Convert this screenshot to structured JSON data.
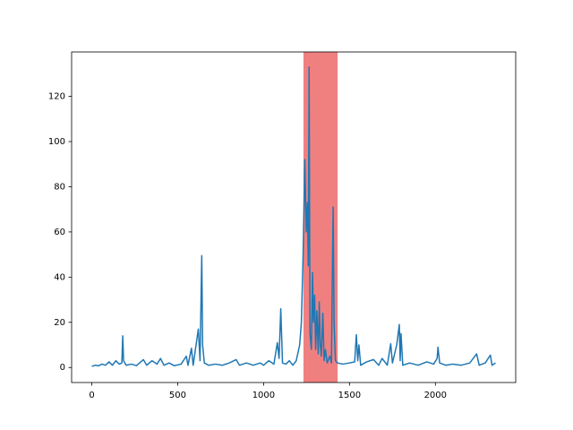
{
  "chart_data": {
    "type": "line",
    "x": [
      0,
      20,
      40,
      60,
      80,
      100,
      120,
      140,
      160,
      175,
      180,
      185,
      200,
      230,
      260,
      300,
      320,
      350,
      380,
      400,
      420,
      450,
      480,
      520,
      550,
      560,
      580,
      590,
      620,
      630,
      640,
      645,
      655,
      680,
      720,
      760,
      800,
      840,
      860,
      900,
      940,
      980,
      1000,
      1030,
      1060,
      1080,
      1090,
      1100,
      1110,
      1130,
      1150,
      1170,
      1190,
      1210,
      1220,
      1230,
      1240,
      1248,
      1255,
      1260,
      1265,
      1270,
      1278,
      1285,
      1290,
      1297,
      1303,
      1310,
      1318,
      1324,
      1330,
      1336,
      1345,
      1352,
      1360,
      1370,
      1385,
      1395,
      1400,
      1405,
      1410,
      1418,
      1430,
      1460,
      1500,
      1530,
      1540,
      1548,
      1555,
      1565,
      1600,
      1640,
      1670,
      1690,
      1720,
      1740,
      1750,
      1775,
      1790,
      1795,
      1800,
      1810,
      1850,
      1900,
      1950,
      1990,
      2010,
      2015,
      2025,
      2060,
      2100,
      2150,
      2200,
      2240,
      2255,
      2290,
      2320,
      2330,
      2350
    ],
    "series": [
      {
        "color": "#1f77b4",
        "values": [
          0.5,
          1,
          0.8,
          1.5,
          1,
          2.5,
          1,
          3,
          1.5,
          2,
          14,
          3,
          1,
          1.5,
          0.8,
          3.5,
          1,
          3,
          1.5,
          4,
          1,
          2,
          0.8,
          1.5,
          5,
          1,
          8.5,
          1,
          17,
          3,
          49.5,
          10,
          2,
          1,
          1.5,
          1,
          2,
          3.5,
          1,
          2,
          1,
          2,
          1,
          3,
          1.5,
          11,
          4,
          26,
          2,
          1.5,
          3,
          1,
          3,
          10,
          20,
          50,
          92,
          60,
          73,
          45,
          133,
          15,
          8,
          42,
          20,
          32,
          8,
          25,
          6,
          29,
          10,
          5,
          24,
          3,
          8,
          2,
          5,
          2,
          40,
          71,
          20,
          3,
          2,
          1.5,
          2,
          2.5,
          14.5,
          3,
          10,
          1,
          2.5,
          3.5,
          1,
          4,
          1,
          10.5,
          2,
          10,
          19,
          3,
          15,
          1,
          2,
          1,
          2.5,
          1.5,
          4,
          9,
          2,
          1,
          1.5,
          1,
          2,
          6,
          1,
          2,
          5.5,
          1,
          2
        ]
      }
    ],
    "axvspan": {
      "xmin": 1232,
      "xmax": 1431,
      "color": "#f08080"
    },
    "xlim": [
      -117.5,
      2467.5
    ],
    "xticks": [
      0,
      500,
      1000,
      1500,
      2000
    ],
    "ylim": [
      -6.65,
      139.65
    ],
    "yticks": [
      0,
      20,
      40,
      60,
      80,
      100,
      120
    ]
  }
}
